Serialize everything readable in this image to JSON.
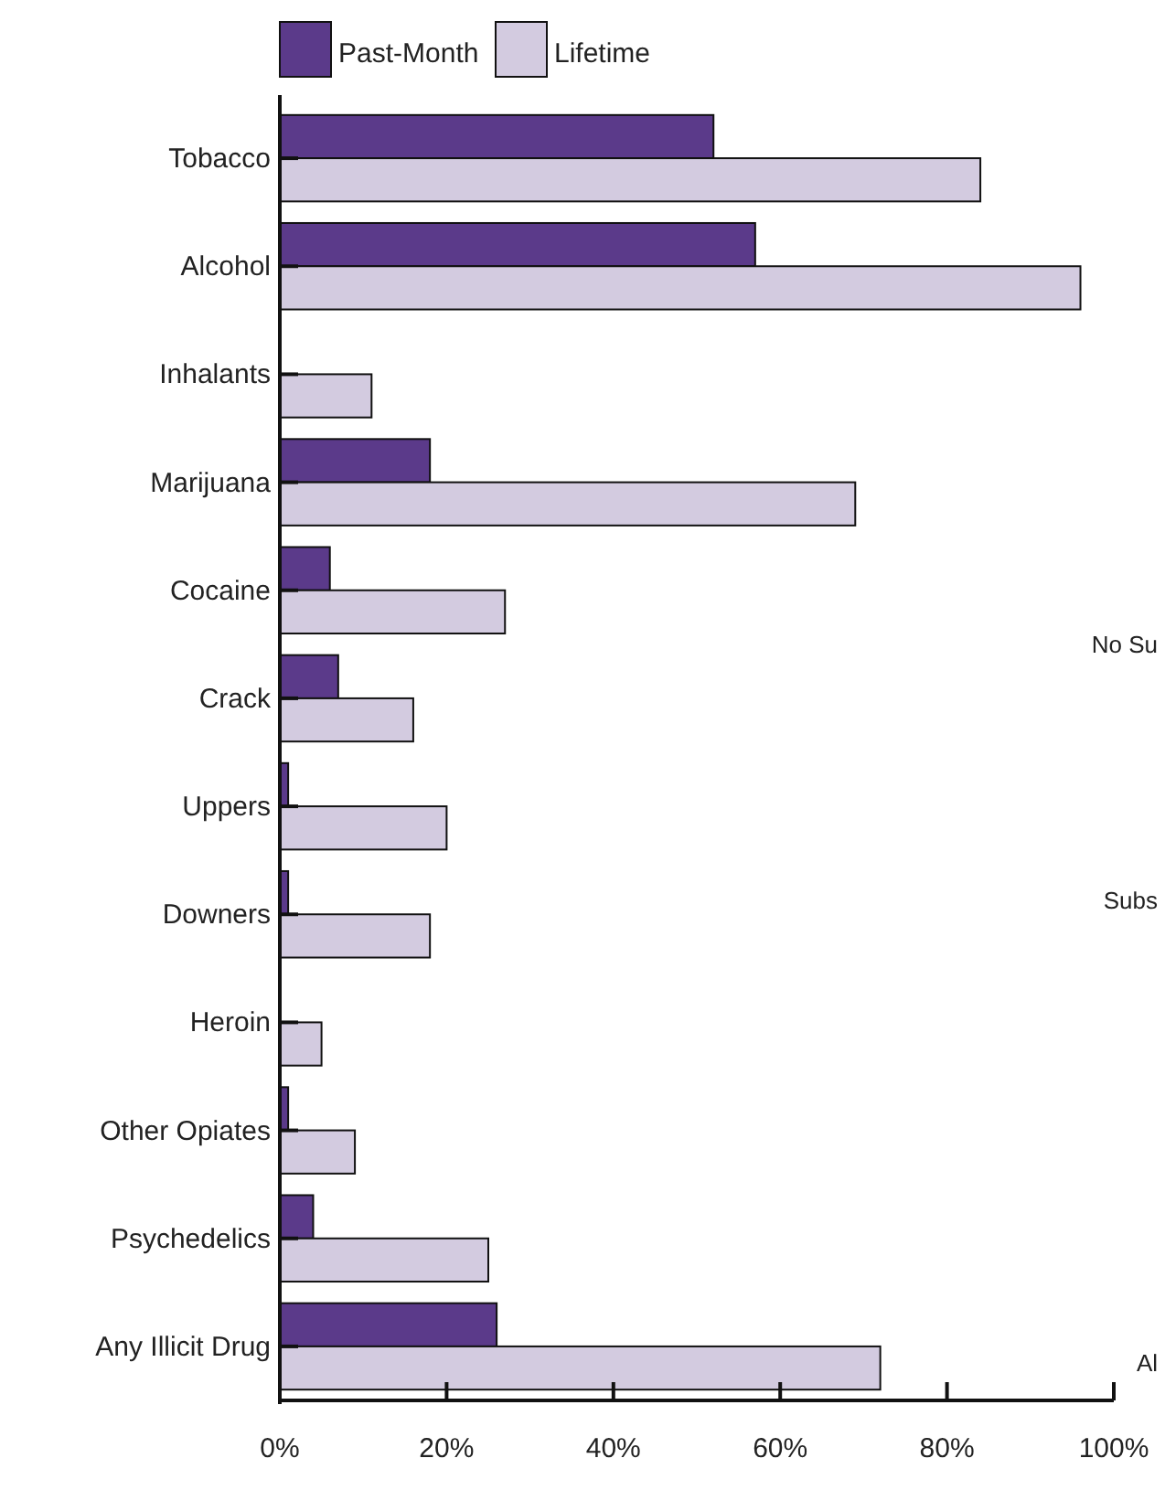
{
  "chart_data": {
    "type": "bar",
    "orientation": "horizontal",
    "categories": [
      "Tobacco",
      "Alcohol",
      "Inhalants",
      "Marijuana",
      "Cocaine",
      "Crack",
      "Uppers",
      "Downers",
      "Heroin",
      "Other Opiates",
      "Psychedelics",
      "Any Illicit Drug"
    ],
    "series": [
      {
        "name": "Past-Month",
        "color": "#5b3a8a",
        "values": [
          52,
          57,
          0,
          18,
          6,
          7,
          1,
          1,
          0,
          1,
          4,
          26
        ]
      },
      {
        "name": "Lifetime",
        "color": "#d3cbe0",
        "values": [
          84,
          96,
          11,
          69,
          27,
          16,
          20,
          18,
          5,
          9,
          25,
          72
        ]
      }
    ],
    "xlim": [
      0,
      100
    ],
    "xticks": [
      {
        "value": 0,
        "label": "0%"
      },
      {
        "value": 20,
        "label": "20%"
      },
      {
        "value": 40,
        "label": "40%"
      },
      {
        "value": 60,
        "label": "60%"
      },
      {
        "value": 80,
        "label": "80%"
      },
      {
        "value": 100,
        "label": "100%"
      }
    ],
    "legend": "top",
    "grid": false,
    "annotations": [
      "No Su",
      "Subs",
      "Al"
    ]
  }
}
